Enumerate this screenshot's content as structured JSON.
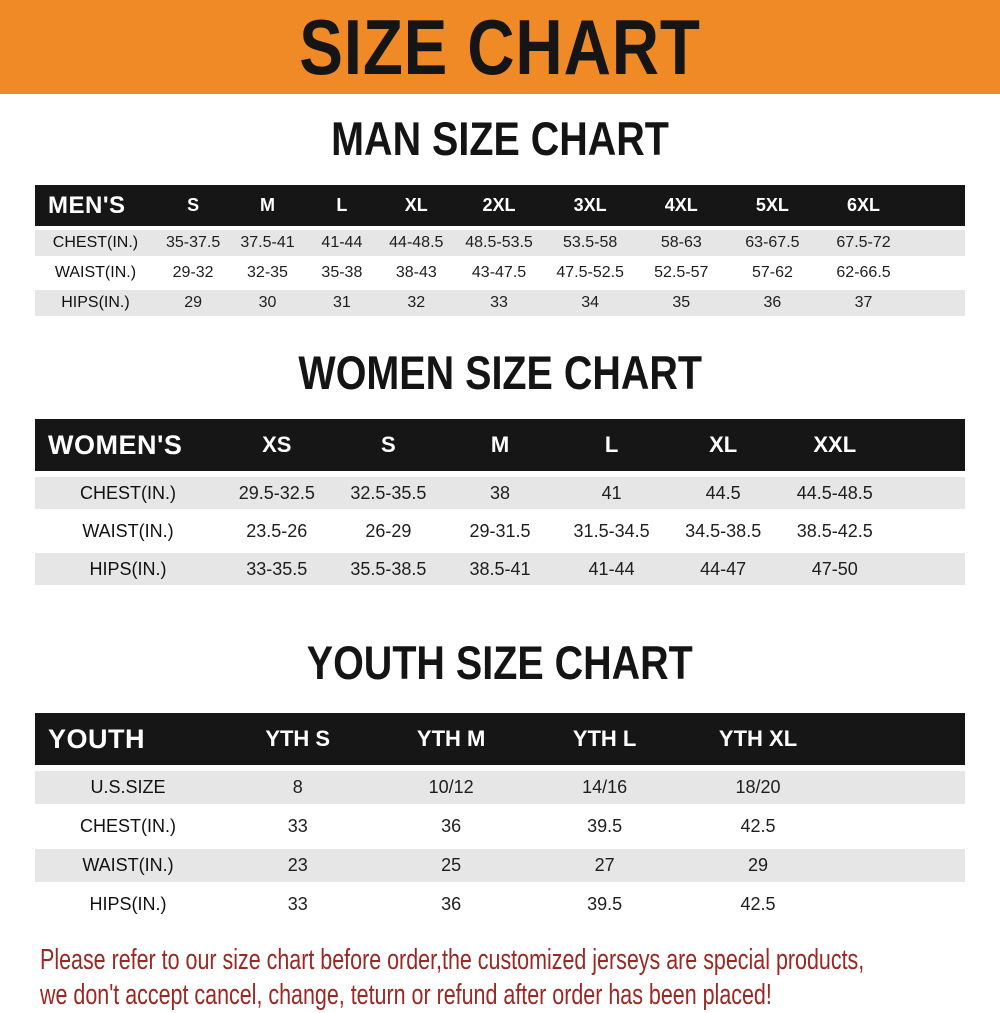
{
  "banner": {
    "title": "SIZE CHART"
  },
  "colors": {
    "banner_bg": "#ef8a26",
    "bar_bg": "#161616",
    "row_alt_bg": "#e6e6e6",
    "footer_text": "#9b2823"
  },
  "sections": [
    {
      "heading": "MAN SIZE CHART",
      "corner": "MEN'S",
      "columns": [
        "S",
        "M",
        "L",
        "XL",
        "2XL",
        "3XL",
        "4XL",
        "5XL",
        "6XL"
      ],
      "rows": [
        {
          "label": "CHEST(IN.)",
          "values": [
            "35-37.5",
            "37.5-41",
            "41-44",
            "44-48.5",
            "48.5-53.5",
            "53.5-58",
            "58-63",
            "63-67.5",
            "67.5-72"
          ]
        },
        {
          "label": "WAIST(IN.)",
          "values": [
            "29-32",
            "32-35",
            "35-38",
            "38-43",
            "43-47.5",
            "47.5-52.5",
            "52.5-57",
            "57-62",
            "62-66.5"
          ]
        },
        {
          "label": "HIPS(IN.)",
          "values": [
            "29",
            "30",
            "31",
            "32",
            "33",
            "34",
            "35",
            "36",
            "37"
          ]
        }
      ]
    },
    {
      "heading": "WOMEN SIZE CHART",
      "corner": "WOMEN'S",
      "columns": [
        "XS",
        "S",
        "M",
        "L",
        "XL",
        "XXL"
      ],
      "rows": [
        {
          "label": "CHEST(IN.)",
          "values": [
            "29.5-32.5",
            "32.5-35.5",
            "38",
            "41",
            "44.5",
            "44.5-48.5"
          ]
        },
        {
          "label": "WAIST(IN.)",
          "values": [
            "23.5-26",
            "26-29",
            "29-31.5",
            "31.5-34.5",
            "34.5-38.5",
            "38.5-42.5"
          ]
        },
        {
          "label": "HIPS(IN.)",
          "values": [
            "33-35.5",
            "35.5-38.5",
            "38.5-41",
            "41-44",
            "44-47",
            "47-50"
          ]
        }
      ]
    },
    {
      "heading": "YOUTH SIZE CHART",
      "corner": "YOUTH",
      "columns": [
        "YTH S",
        "YTH M",
        "YTH L",
        "YTH XL"
      ],
      "rows": [
        {
          "label": "U.S.SIZE",
          "values": [
            "8",
            "10/12",
            "14/16",
            "18/20"
          ]
        },
        {
          "label": "CHEST(IN.)",
          "values": [
            "33",
            "36",
            "39.5",
            "42.5"
          ]
        },
        {
          "label": "WAIST(IN.)",
          "values": [
            "23",
            "25",
            "27",
            "29"
          ]
        },
        {
          "label": "HIPS(IN.)",
          "values": [
            "33",
            "36",
            "39.5",
            "42.5"
          ]
        }
      ]
    }
  ],
  "footer": {
    "lines": [
      "Please refer to our size chart before order,the customized jerseys are special products,",
      "we don't accept cancel, change, teturn or refund after order has been placed!"
    ]
  }
}
